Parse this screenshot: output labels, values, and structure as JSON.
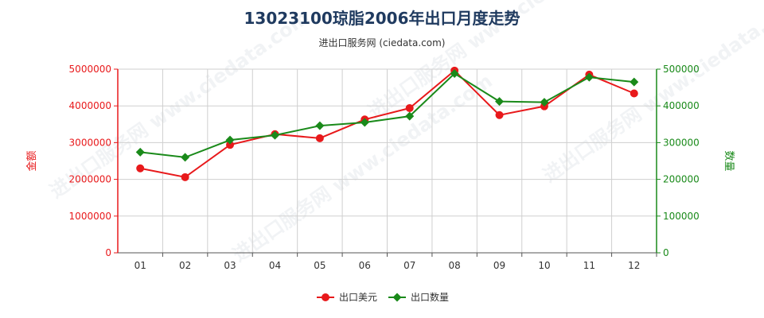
{
  "chart_data": {
    "type": "line",
    "title": "13023100琼脂2006年出口月度走势",
    "subtitle": "进出口服务网 (ciedata.com)",
    "categories": [
      "01",
      "02",
      "03",
      "04",
      "05",
      "06",
      "07",
      "08",
      "09",
      "10",
      "11",
      "12"
    ],
    "y_left": {
      "label": "金额",
      "min": 0,
      "max": 5000000,
      "ticks": [
        0,
        1000000,
        2000000,
        3000000,
        4000000,
        5000000
      ],
      "tick_labels": [
        "0",
        "1000000",
        "2000000",
        "3000000",
        "4000000",
        "5000000"
      ],
      "color": "#e8191b"
    },
    "y_right": {
      "label": "数量",
      "min": 0,
      "max": 500000,
      "ticks": [
        0,
        100000,
        200000,
        300000,
        400000,
        500000
      ],
      "tick_labels": [
        "0",
        "100000",
        "200000",
        "300000",
        "400000",
        "500000"
      ],
      "color": "#1a8a1a"
    },
    "series": [
      {
        "name": "出口美元",
        "axis": "left",
        "color": "#e8191b",
        "marker": "circle",
        "values": [
          2300000,
          2060000,
          2940000,
          3230000,
          3120000,
          3630000,
          3940000,
          4960000,
          3750000,
          3990000,
          4850000,
          4340000
        ]
      },
      {
        "name": "出口数量",
        "axis": "right",
        "color": "#1a8a1a",
        "marker": "diamond",
        "values": [
          274000,
          260000,
          307000,
          320000,
          346000,
          355000,
          372000,
          488000,
          412000,
          410000,
          478000,
          465000
        ]
      }
    ],
    "grid": true,
    "legend_position": "bottom-center"
  },
  "watermark": "进出口服务网 www.ciedata.com"
}
